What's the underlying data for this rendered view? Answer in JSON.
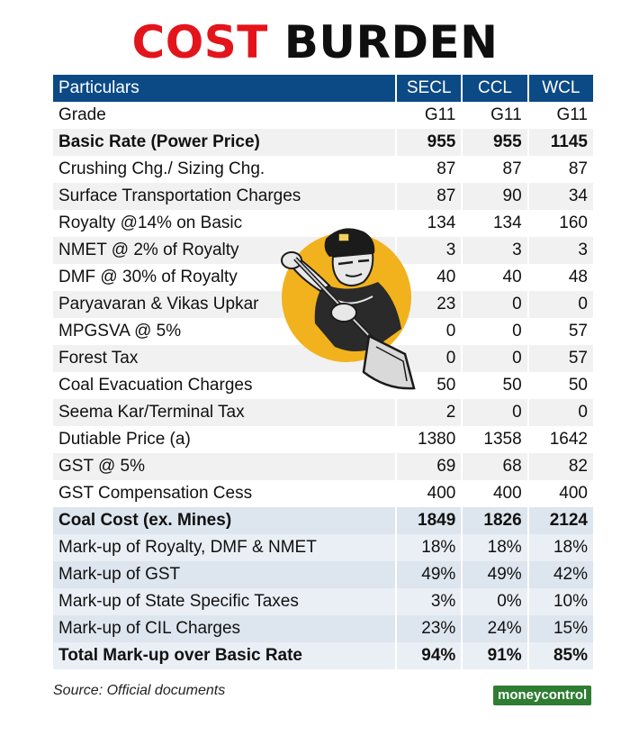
{
  "title": {
    "part1": "COST",
    "part2": "BURDEN"
  },
  "table": {
    "headers": [
      "Particulars",
      "SECL",
      "CCL",
      "WCL"
    ],
    "rows": [
      {
        "label": "Grade",
        "values": [
          "G11",
          "G11",
          "G11"
        ],
        "bold": false
      },
      {
        "label": "Basic Rate (Power Price)",
        "values": [
          "955",
          "955",
          "1145"
        ],
        "bold": true
      },
      {
        "label": "Crushing Chg./ Sizing Chg.",
        "values": [
          "87",
          "87",
          "87"
        ],
        "bold": false
      },
      {
        "label": "Surface Transportation Charges",
        "values": [
          "87",
          "90",
          "34"
        ],
        "bold": false
      },
      {
        "label": "Royalty @14% on Basic",
        "values": [
          "134",
          "134",
          "160"
        ],
        "bold": false
      },
      {
        "label": "NMET @ 2% of Royalty",
        "values": [
          "3",
          "3",
          "3"
        ],
        "bold": false
      },
      {
        "label": "DMF @ 30% of Royalty",
        "values": [
          "40",
          "40",
          "48"
        ],
        "bold": false
      },
      {
        "label": "Paryavaran & Vikas Upkar",
        "values": [
          "23",
          "0",
          "0"
        ],
        "bold": false
      },
      {
        "label": "MPGSVA @ 5%",
        "values": [
          "0",
          "0",
          "57"
        ],
        "bold": false
      },
      {
        "label": "Forest Tax",
        "values": [
          "0",
          "0",
          "57"
        ],
        "bold": false
      },
      {
        "label": "Coal Evacuation Charges",
        "values": [
          "50",
          "50",
          "50"
        ],
        "bold": false
      },
      {
        "label": "Seema Kar/Terminal Tax",
        "values": [
          "2",
          "0",
          "0"
        ],
        "bold": false
      },
      {
        "label": "Dutiable Price (a)",
        "values": [
          "1380",
          "1358",
          "1642"
        ],
        "bold": false
      },
      {
        "label": "GST @ 5%",
        "values": [
          "69",
          "68",
          "82"
        ],
        "bold": false
      },
      {
        "label": "GST Compensation Cess",
        "values": [
          "400",
          "400",
          "400"
        ],
        "bold": false
      },
      {
        "label": "Coal Cost (ex. Mines)",
        "values": [
          "1849",
          "1826",
          "2124"
        ],
        "bold": true
      },
      {
        "label": "Mark-up of Royalty, DMF & NMET",
        "values": [
          "18%",
          "18%",
          "18%"
        ],
        "bold": false
      },
      {
        "label": "Mark-up of GST",
        "values": [
          "49%",
          "49%",
          "42%"
        ],
        "bold": false
      },
      {
        "label": "Mark-up of State Specific Taxes",
        "values": [
          "3%",
          "0%",
          "10%"
        ],
        "bold": false
      },
      {
        "label": "Mark-up of CIL Charges",
        "values": [
          "23%",
          "24%",
          "15%"
        ],
        "bold": false
      },
      {
        "label": "Total Mark-up over Basic Rate",
        "values": [
          "94%",
          "91%",
          "85%"
        ],
        "bold": true
      }
    ]
  },
  "footer": {
    "source": "Source: Official documents",
    "logo": "moneycontrol"
  },
  "illustration": {
    "icon": "coal-miner-with-shovel-icon",
    "circle_color": "#f2b21d"
  }
}
